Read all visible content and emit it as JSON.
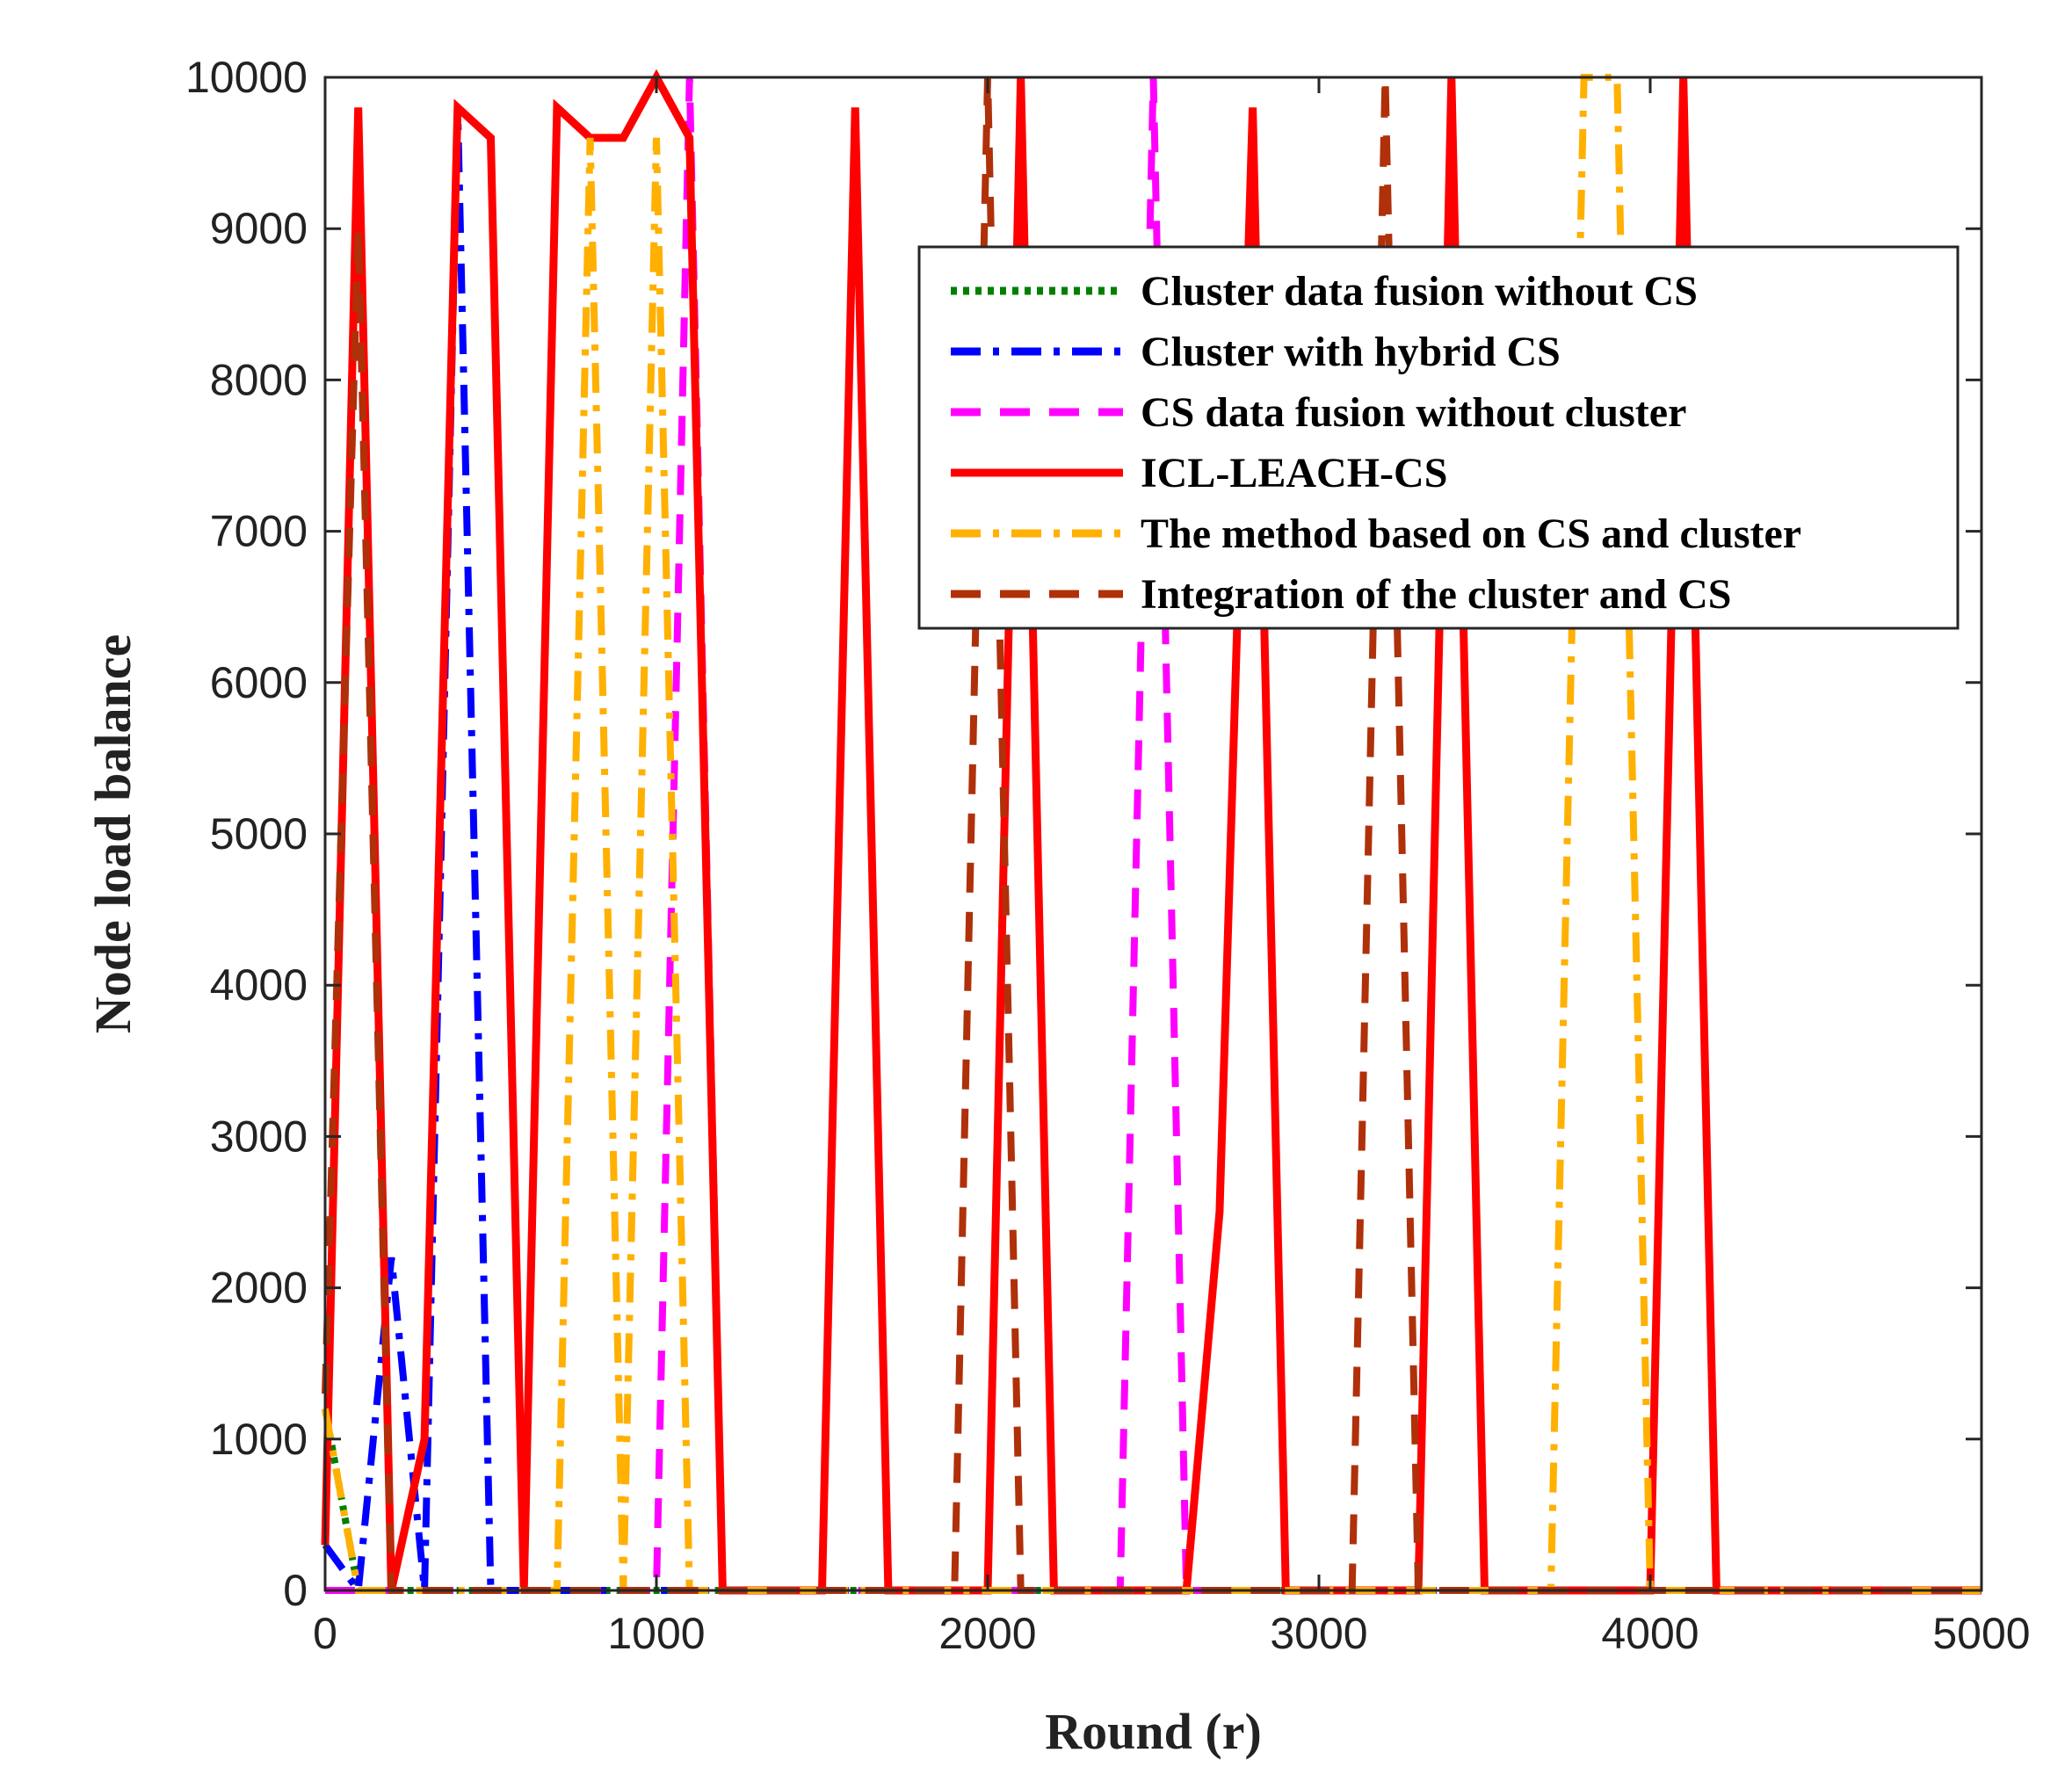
{
  "chart_data": {
    "type": "line",
    "title": "",
    "xlabel": "Round (r)",
    "ylabel": "Node load balance",
    "xlim": [
      0,
      5000
    ],
    "ylim": [
      0,
      10000
    ],
    "xticks": [
      0,
      1000,
      2000,
      3000,
      4000,
      5000
    ],
    "yticks": [
      0,
      1000,
      2000,
      3000,
      4000,
      5000,
      6000,
      7000,
      8000,
      9000,
      10000
    ],
    "legend_position": "top-right",
    "grid": false,
    "series": [
      {
        "name": "Cluster data fusion without CS",
        "color": "#008000",
        "dash": "dotted",
        "x": [
          0,
          100,
          200,
          300,
          400,
          500,
          1000,
          5000
        ],
        "y": [
          1200,
          0,
          0,
          0,
          0,
          0,
          0,
          0
        ]
      },
      {
        "name": "Cluster with hybrid CS",
        "color": "#0000ff",
        "dash": "dashdot",
        "x": [
          0,
          100,
          200,
          300,
          400,
          500,
          1000,
          5000
        ],
        "y": [
          300,
          0,
          2200,
          0,
          9800,
          0,
          0,
          0
        ]
      },
      {
        "name": "CS data fusion without cluster",
        "color": "#ff00ff",
        "dash": "dashed",
        "x": [
          0,
          1000,
          1100,
          1200,
          2400,
          2500,
          2600,
          5000
        ],
        "y": [
          0,
          0,
          10000,
          0,
          0,
          10000,
          0,
          0
        ]
      },
      {
        "name": "ICL-LEACH-CS",
        "color": "#ff0000",
        "dash": "solid",
        "x": [
          0,
          100,
          200,
          300,
          400,
          500,
          600,
          700,
          800,
          900,
          1000,
          1100,
          1200,
          1500,
          1600,
          1700,
          2000,
          2100,
          2200,
          2600,
          2700,
          2800,
          2900,
          3300,
          3400,
          3500,
          4000,
          4100,
          4200,
          5000
        ],
        "y": [
          300,
          9800,
          0,
          1000,
          9800,
          9600,
          0,
          9800,
          9600,
          9600,
          10000,
          9600,
          0,
          0,
          9800,
          0,
          0,
          10000,
          0,
          0,
          2500,
          9800,
          0,
          0,
          10000,
          0,
          0,
          10000,
          0,
          0
        ]
      },
      {
        "name": "The method based on CS and cluster",
        "color": "#ffb000",
        "dash": "dashdot",
        "x": [
          0,
          100,
          700,
          800,
          900,
          1000,
          1100,
          3700,
          3800,
          3900,
          4000,
          5000
        ],
        "y": [
          1200,
          0,
          0,
          9600,
          0,
          9600,
          0,
          0,
          10000,
          10000,
          0,
          0
        ]
      },
      {
        "name": "Integration of the cluster and CS",
        "color": "#b0300a",
        "dash": "dashed",
        "x": [
          0,
          100,
          200,
          1900,
          2000,
          2100,
          3100,
          3200,
          3300,
          5000
        ],
        "y": [
          1300,
          9000,
          0,
          0,
          10000,
          0,
          0,
          10000,
          0,
          0
        ]
      }
    ]
  }
}
